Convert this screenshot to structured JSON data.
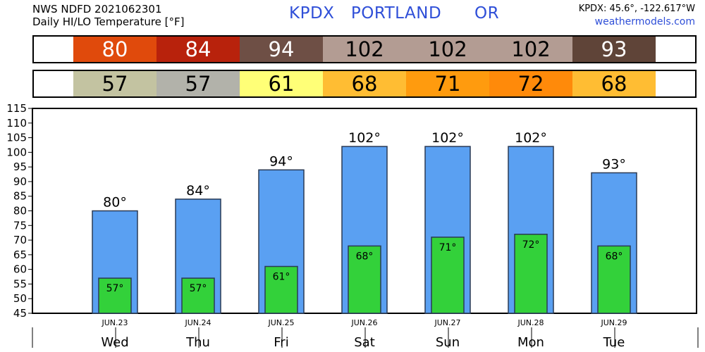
{
  "header": {
    "line1": "NWS NDFD 2021062301",
    "line2": "Daily HI/LO Temperature [°F]",
    "station": "KPDX   PORTLAND      OR",
    "coords": "KPDX: 45.6°, -122.617°W",
    "site": "weathermodels.com"
  },
  "colors": {
    "hi_bar": "#5aa0f2",
    "lo_bar": "#33d13a",
    "hi_cells": [
      "#e04a0c",
      "#b8220c",
      "#6e4f45",
      "#b39c93",
      "#b39c93",
      "#b39c93",
      "#5f4438"
    ],
    "lo_cells": [
      "#c3c3a1",
      "#b2b2aa",
      "#ffff77",
      "#ffbd33",
      "#ff9b0e",
      "#ff8a0a",
      "#ffbd33"
    ],
    "hi_cell_text": [
      "#ffffff",
      "#ffffff",
      "#ffffff",
      "#000000",
      "#000000",
      "#000000",
      "#ffffff"
    ]
  },
  "chart_data": {
    "type": "bar",
    "categories": [
      "Wed",
      "Thu",
      "Fri",
      "Sat",
      "Sun",
      "Mon",
      "Tue"
    ],
    "dates": [
      "JUN.23",
      "JUN.24",
      "JUN.25",
      "JUN.26",
      "JUN.27",
      "JUN.28",
      "JUN.29"
    ],
    "series": [
      {
        "values": [
          80,
          84,
          94,
          102,
          102,
          102,
          93
        ]
      },
      {
        "values": [
          57,
          57,
          61,
          68,
          71,
          72,
          68
        ]
      }
    ],
    "hi_labels": [
      "80°",
      "84°",
      "94°",
      "102°",
      "102°",
      "102°",
      "93°"
    ],
    "lo_labels": [
      "57°",
      "57°",
      "61°",
      "68°",
      "71°",
      "72°",
      "68°"
    ],
    "hi_strip": [
      "80",
      "84",
      "94",
      "102",
      "102",
      "102",
      "93"
    ],
    "lo_strip": [
      "57",
      "57",
      "61",
      "68",
      "71",
      "72",
      "68"
    ],
    "yticks": [
      "45",
      "50",
      "55",
      "60",
      "65",
      "70",
      "75",
      "80",
      "85",
      "90",
      "95",
      "100",
      "105",
      "110",
      "115"
    ],
    "ylim": [
      45,
      115
    ],
    "grid": false
  }
}
